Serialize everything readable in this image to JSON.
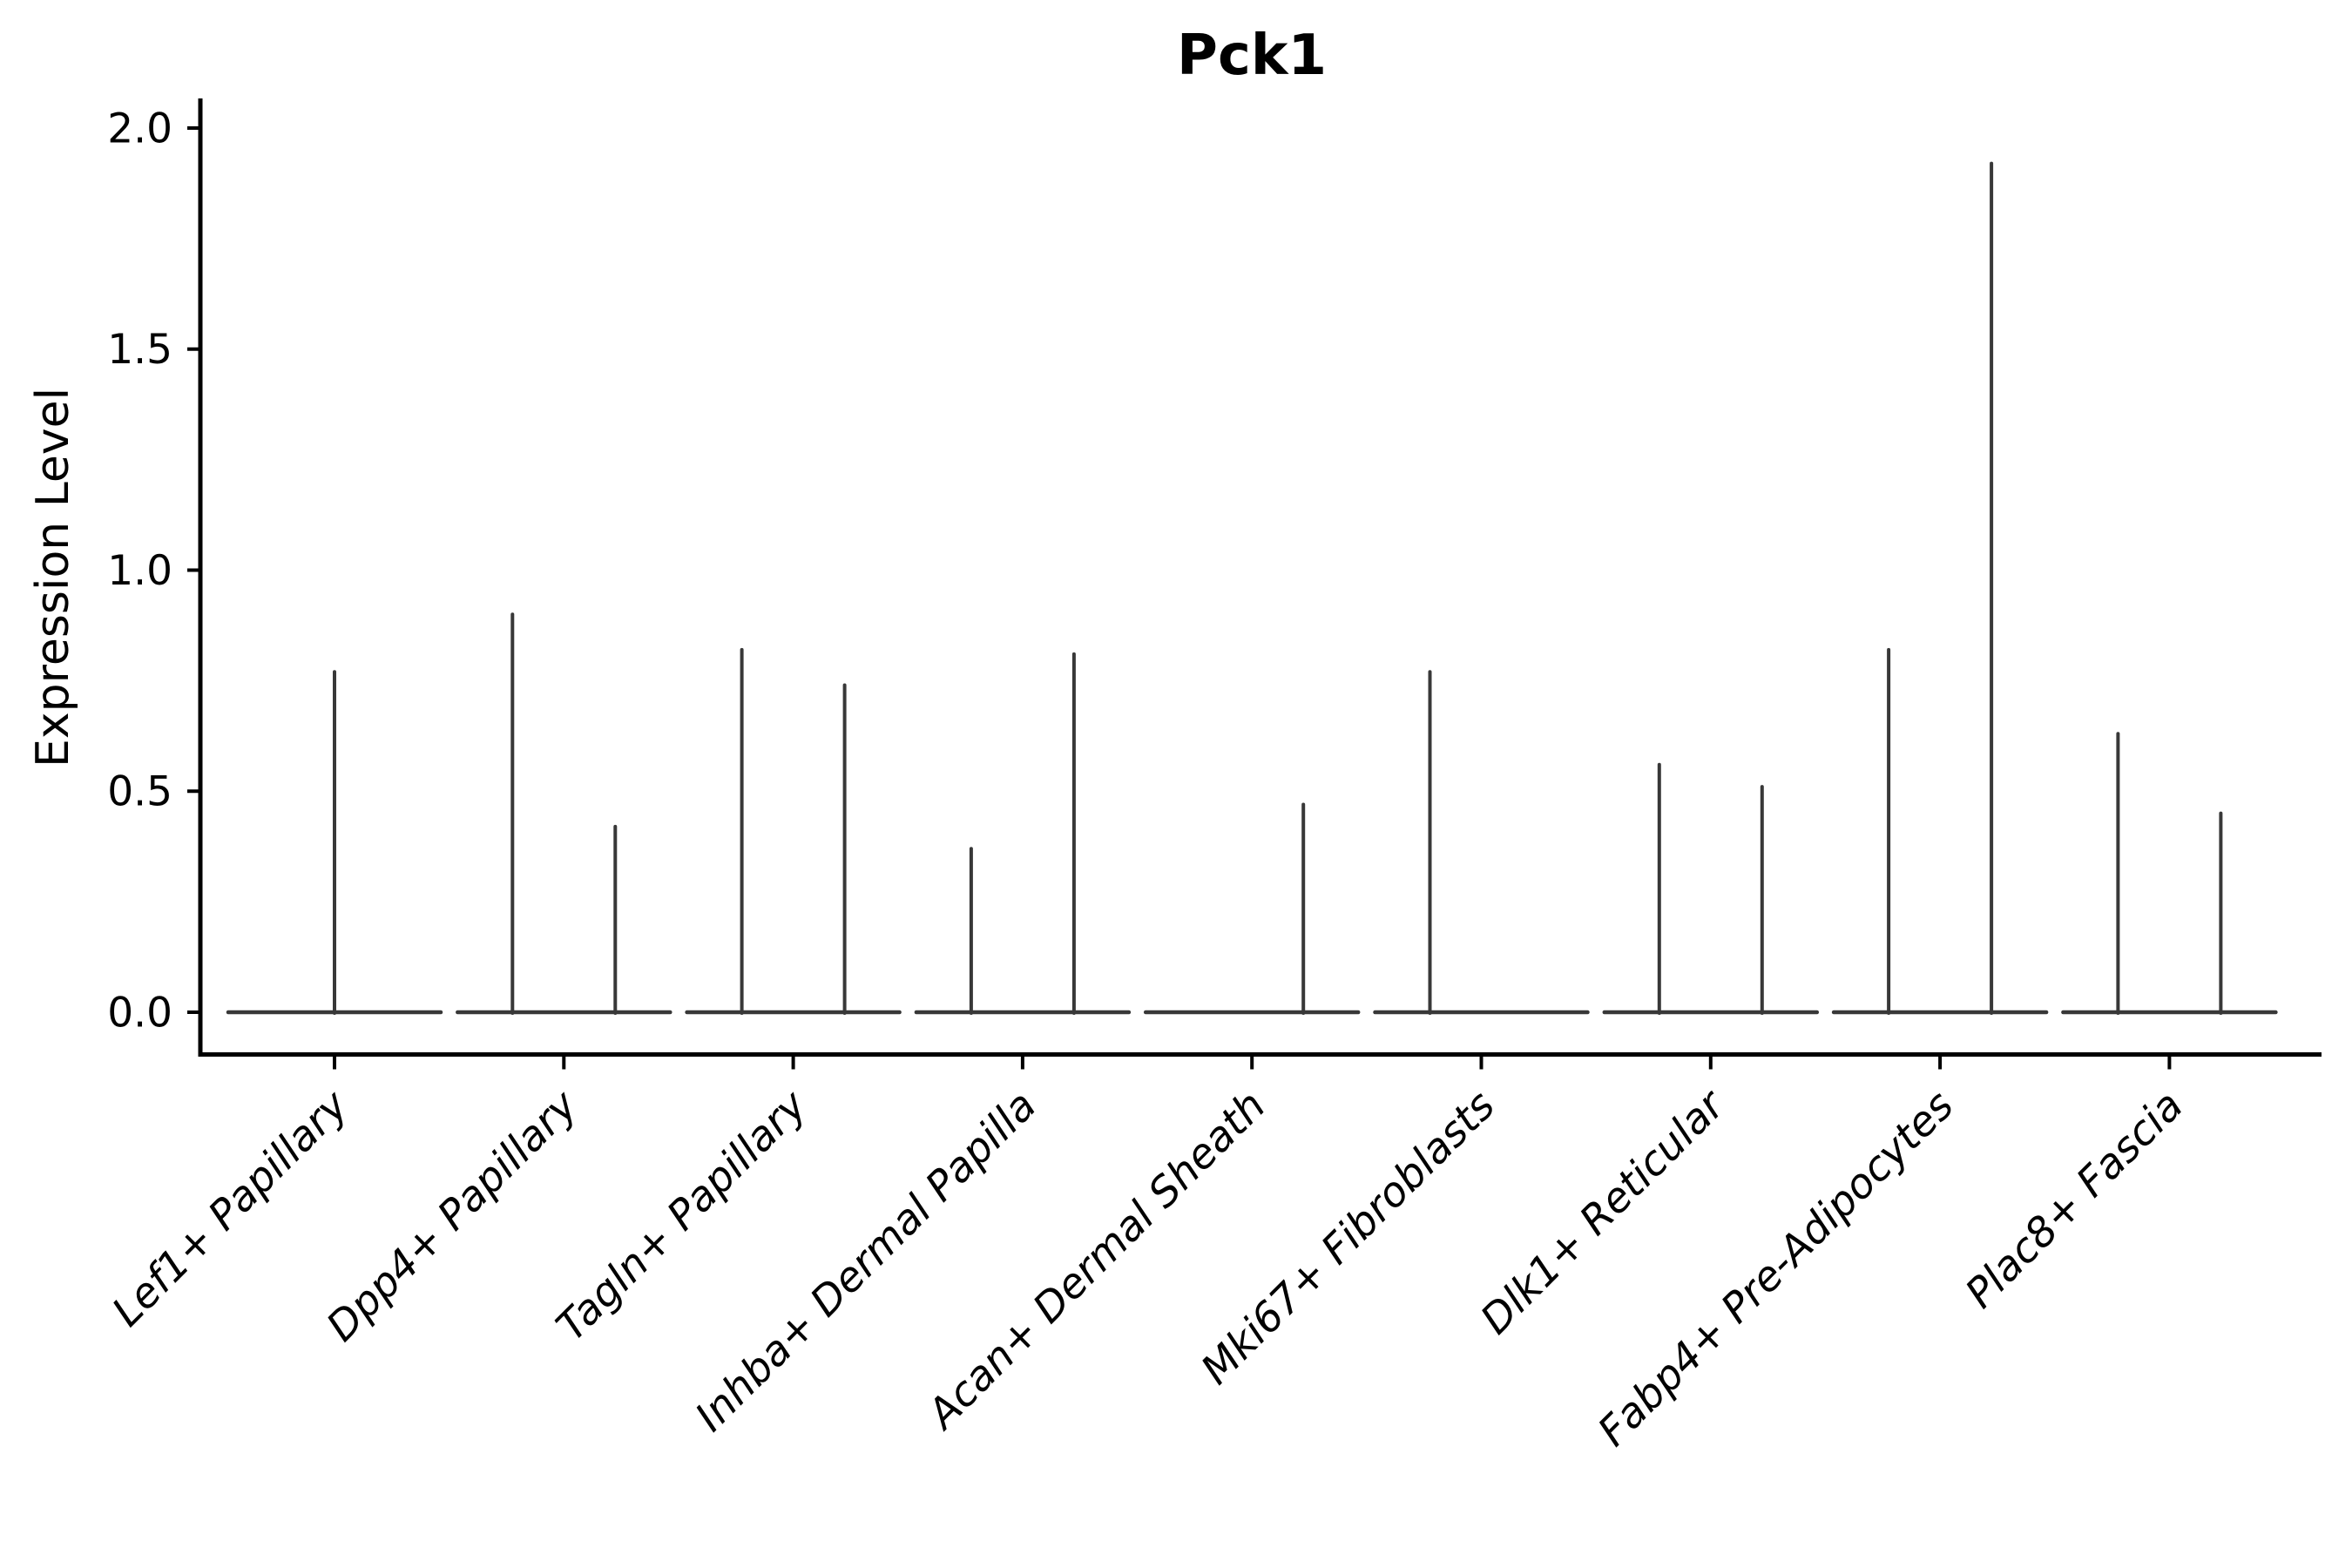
{
  "chart_data": {
    "type": "violin",
    "title": "Pck1",
    "xlabel": "",
    "ylabel": "Expression Level",
    "ylim": [
      -0.09,
      2.06
    ],
    "yticks": [
      0.0,
      0.5,
      1.0,
      1.5,
      2.0
    ],
    "ytick_labels": [
      "0.0",
      "0.5",
      "1.0",
      "1.5",
      "2.0"
    ],
    "grid": false,
    "legend": "none",
    "baseline_value": 0,
    "categories": [
      "Lef1+ Papillary",
      "Dpp4+ Papillary",
      "Tagln+ Papillary",
      "Inhba+ Dermal Papilla",
      "Acan+ Dermal Sheath",
      "Mki67+ Fibroblasts",
      "Dlk1+ Reticular",
      "Fabp4+ Pre-Adipocytes",
      "Plac8+ Fascia"
    ],
    "violins": [
      {
        "category": "Lef1+ Papillary",
        "spikes": [
          {
            "pos": "center",
            "max": 0.77
          }
        ]
      },
      {
        "category": "Dpp4+ Papillary",
        "spikes": [
          {
            "pos": "left",
            "max": 0.9
          },
          {
            "pos": "right",
            "max": 0.42
          }
        ]
      },
      {
        "category": "Tagln+ Papillary",
        "spikes": [
          {
            "pos": "left",
            "max": 0.82
          },
          {
            "pos": "right",
            "max": 0.74
          }
        ]
      },
      {
        "category": "Inhba+ Dermal Papilla",
        "spikes": [
          {
            "pos": "left",
            "max": 0.37
          },
          {
            "pos": "right",
            "max": 0.81
          }
        ]
      },
      {
        "category": "Acan+ Dermal Sheath",
        "spikes": [
          {
            "pos": "right",
            "max": 0.47
          }
        ]
      },
      {
        "category": "Mki67+ Fibroblasts",
        "spikes": [
          {
            "pos": "left",
            "max": 0.77
          }
        ]
      },
      {
        "category": "Dlk1+ Reticular",
        "spikes": [
          {
            "pos": "left",
            "max": 0.56
          },
          {
            "pos": "right",
            "max": 0.51
          }
        ]
      },
      {
        "category": "Fabp4+ Pre-Adipocytes",
        "spikes": [
          {
            "pos": "left",
            "max": 0.82
          },
          {
            "pos": "right",
            "max": 1.92
          }
        ]
      },
      {
        "category": "Plac8+ Fascia",
        "spikes": [
          {
            "pos": "left",
            "max": 0.63
          },
          {
            "pos": "right",
            "max": 0.45
          }
        ]
      }
    ],
    "style": {
      "violin_color": "#383838",
      "axis_color": "#000000",
      "text_color": "#000000",
      "background": "#ffffff"
    }
  }
}
